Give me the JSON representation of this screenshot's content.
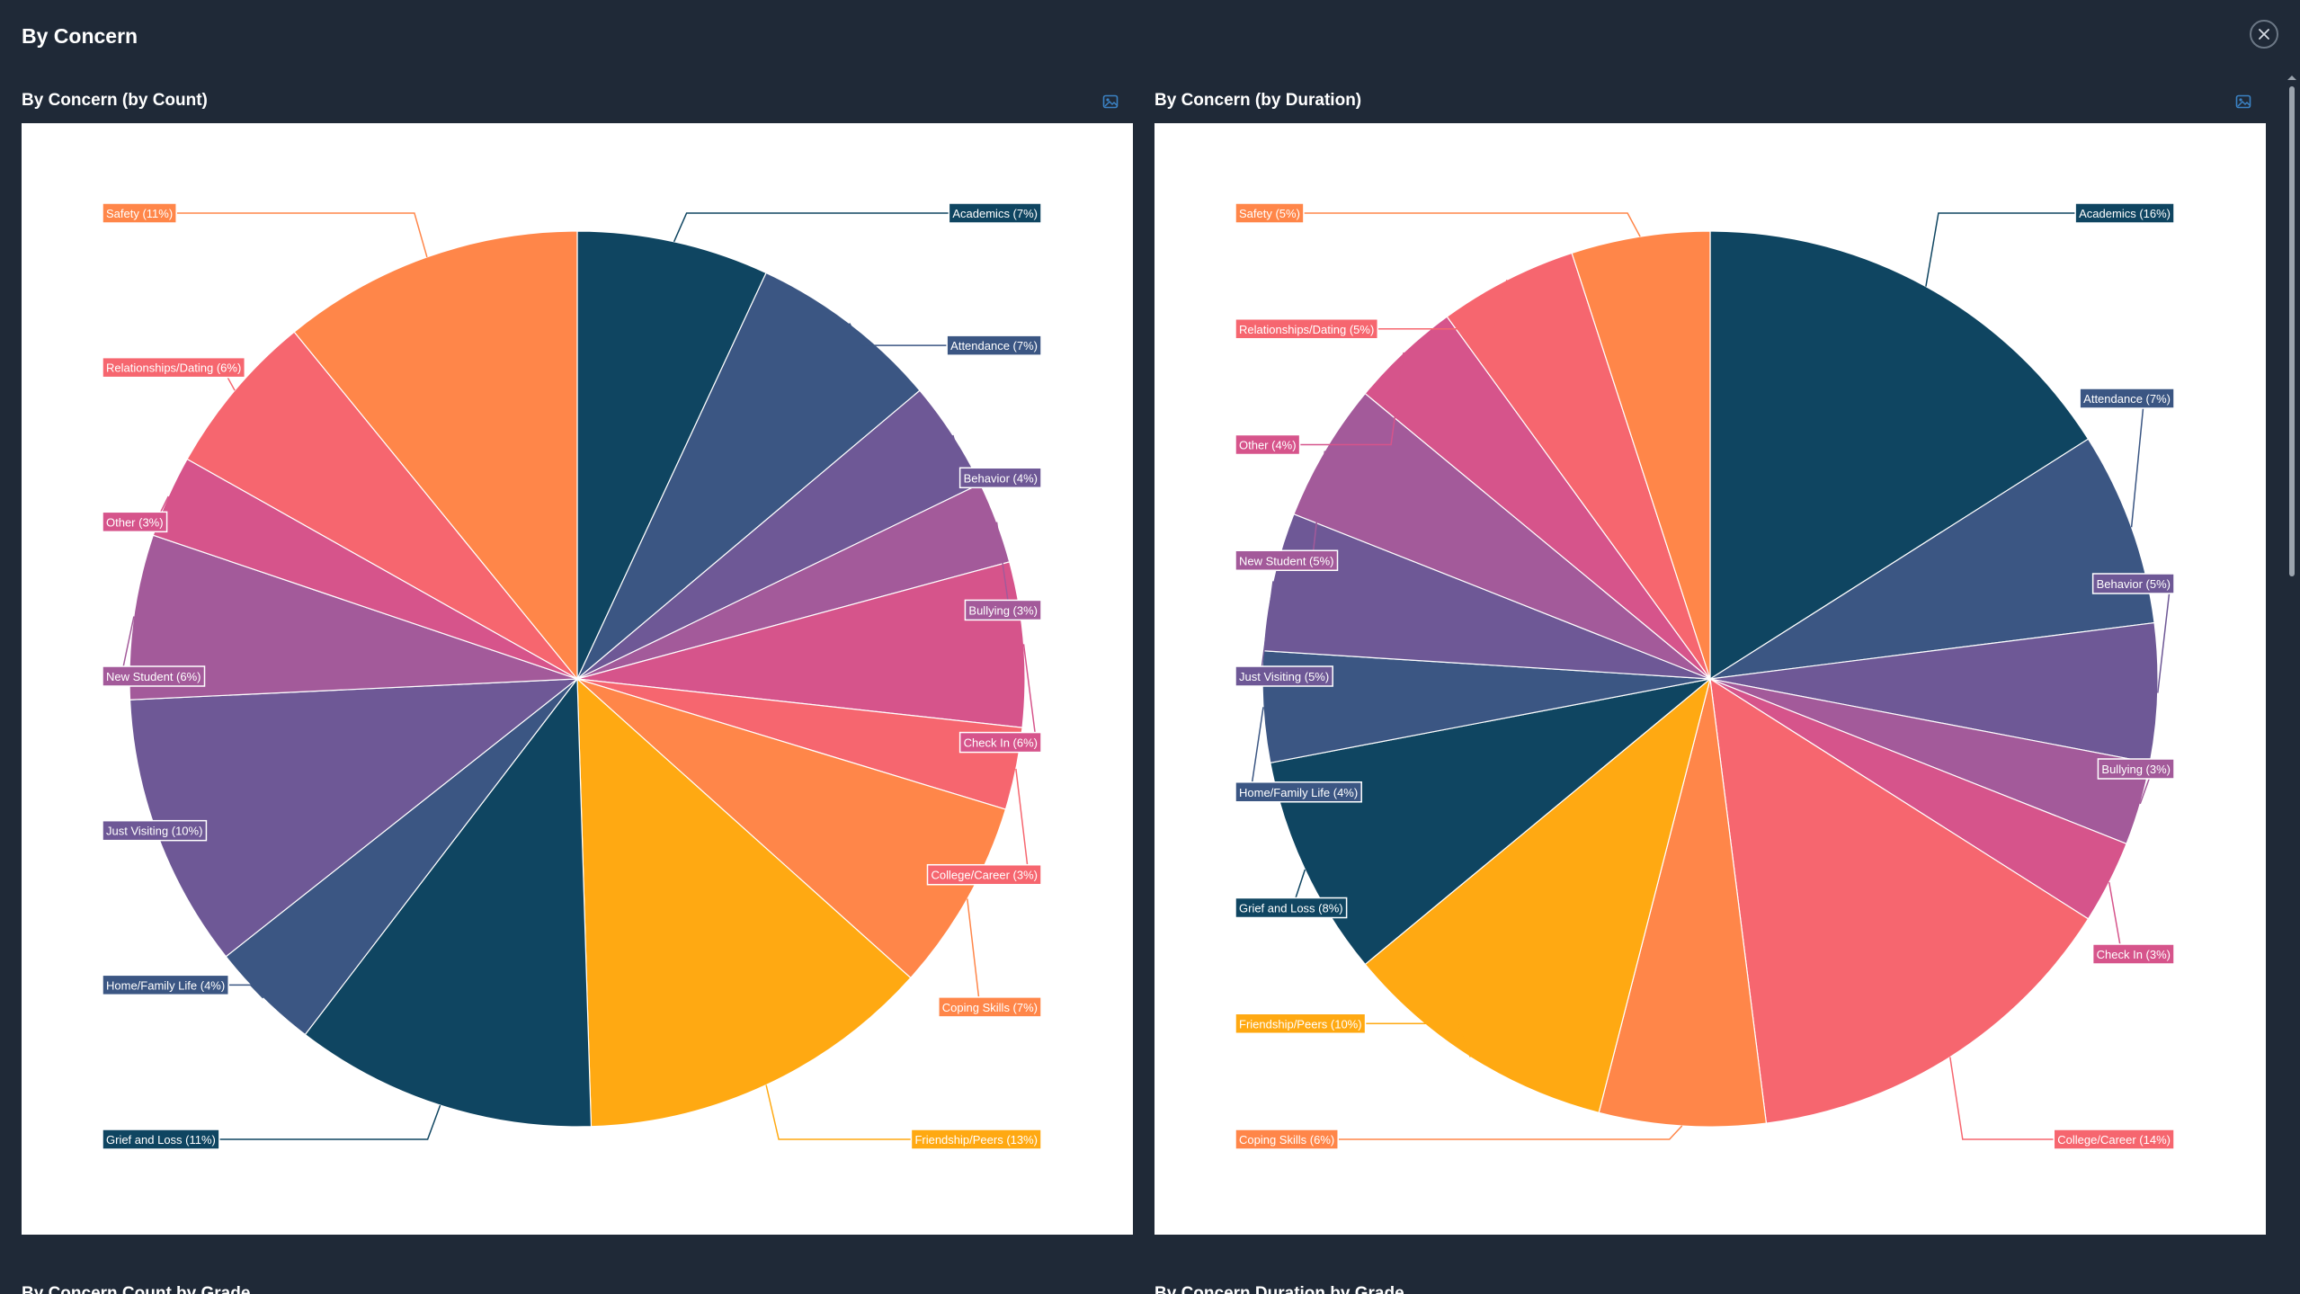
{
  "modal": {
    "title": "By Concern"
  },
  "icons": {
    "close": "close-icon",
    "export": "image-export-icon"
  },
  "panels": [
    {
      "title": "By Concern (by Count)"
    },
    {
      "title": "By Concern (by Duration)"
    }
  ],
  "below": [
    {
      "title": "By Concern Count by Grade"
    },
    {
      "title": "By Concern Duration by Grade"
    }
  ],
  "colors": {
    "background": "#1f2937",
    "navy": "#0f4561",
    "slate": "#3b5683",
    "purple": "#6e5896",
    "violet": "#a35a9a",
    "magenta": "#d6548b",
    "rose": "#f6666f",
    "orange": "#ff8649",
    "amber": "#ffa912"
  },
  "chart_data": [
    {
      "type": "pie",
      "title": "By Concern (by Count)",
      "slices": [
        {
          "label": "Academics (7%)",
          "category": "Academics",
          "percent": 7,
          "color": "#0f4561"
        },
        {
          "label": "Attendance (7%)",
          "category": "Attendance",
          "percent": 7,
          "color": "#3b5683"
        },
        {
          "label": "Behavior (4%)",
          "category": "Behavior",
          "percent": 4,
          "color": "#6e5896"
        },
        {
          "label": "Bullying (3%)",
          "category": "Bullying",
          "percent": 3,
          "color": "#a35a9a"
        },
        {
          "label": "Check In (6%)",
          "category": "Check In",
          "percent": 6,
          "color": "#d6548b"
        },
        {
          "label": "College/Career (3%)",
          "category": "College/Career",
          "percent": 3,
          "color": "#f6666f"
        },
        {
          "label": "Coping Skills (7%)",
          "category": "Coping Skills",
          "percent": 7,
          "color": "#ff8649"
        },
        {
          "label": "Friendship/Peers (13%)",
          "category": "Friendship/Peers",
          "percent": 13,
          "color": "#ffa912"
        },
        {
          "label": "Grief and Loss (11%)",
          "category": "Grief and Loss",
          "percent": 11,
          "color": "#0f4561"
        },
        {
          "label": "Home/Family Life (4%)",
          "category": "Home/Family Life",
          "percent": 4,
          "color": "#3b5683"
        },
        {
          "label": "Just Visiting (10%)",
          "category": "Just Visiting",
          "percent": 10,
          "color": "#6e5896"
        },
        {
          "label": "New Student (6%)",
          "category": "New Student",
          "percent": 6,
          "color": "#a35a9a"
        },
        {
          "label": "Other (3%)",
          "category": "Other",
          "percent": 3,
          "color": "#d6548b"
        },
        {
          "label": "Relationships/Dating (6%)",
          "category": "Relationships/Dating",
          "percent": 6,
          "color": "#f6666f"
        },
        {
          "label": "Safety (11%)",
          "category": "Safety",
          "percent": 11,
          "color": "#ff8649"
        }
      ]
    },
    {
      "type": "pie",
      "title": "By Concern (by Duration)",
      "slices": [
        {
          "label": "Academics (16%)",
          "category": "Academics",
          "percent": 16,
          "color": "#0f4561"
        },
        {
          "label": "Attendance (7%)",
          "category": "Attendance",
          "percent": 7,
          "color": "#3b5683"
        },
        {
          "label": "Behavior (5%)",
          "category": "Behavior",
          "percent": 5,
          "color": "#6e5896"
        },
        {
          "label": "Bullying (3%)",
          "category": "Bullying",
          "percent": 3,
          "color": "#a35a9a"
        },
        {
          "label": "Check In (3%)",
          "category": "Check In",
          "percent": 3,
          "color": "#d6548b"
        },
        {
          "label": "College/Career (14%)",
          "category": "College/Career",
          "percent": 14,
          "color": "#f6666f"
        },
        {
          "label": "Coping Skills (6%)",
          "category": "Coping Skills",
          "percent": 6,
          "color": "#ff8649"
        },
        {
          "label": "Friendship/Peers (10%)",
          "category": "Friendship/Peers",
          "percent": 10,
          "color": "#ffa912"
        },
        {
          "label": "Grief and Loss (8%)",
          "category": "Grief and Loss",
          "percent": 8,
          "color": "#0f4561"
        },
        {
          "label": "Home/Family Life (4%)",
          "category": "Home/Family Life",
          "percent": 4,
          "color": "#3b5683"
        },
        {
          "label": "Just Visiting (5%)",
          "category": "Just Visiting",
          "percent": 5,
          "color": "#6e5896"
        },
        {
          "label": "New Student (5%)",
          "category": "New Student",
          "percent": 5,
          "color": "#a35a9a"
        },
        {
          "label": "Other (4%)",
          "category": "Other",
          "percent": 4,
          "color": "#d6548b"
        },
        {
          "label": "Relationships/Dating (5%)",
          "category": "Relationships/Dating",
          "percent": 5,
          "color": "#f6666f"
        },
        {
          "label": "Safety (5%)",
          "category": "Safety",
          "percent": 5,
          "color": "#ff8649"
        }
      ]
    }
  ]
}
